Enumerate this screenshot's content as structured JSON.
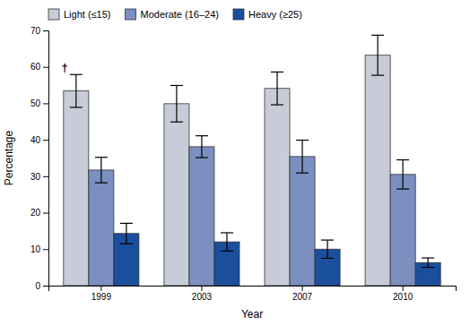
{
  "chart_data": {
    "type": "bar",
    "xlabel": "Year",
    "ylabel": "Percentage",
    "categories": [
      "1999",
      "2003",
      "2007",
      "2010"
    ],
    "series": [
      {
        "name": "Light (≤15)",
        "color": "#c8ccd8",
        "values": [
          53.4,
          49.9,
          54.1,
          63.2
        ],
        "errors": [
          4.5,
          5.0,
          4.5,
          5.5
        ]
      },
      {
        "name": "Moderate (16–24)",
        "color": "#7b8fc0",
        "values": [
          31.7,
          38.1,
          35.4,
          30.5
        ],
        "errors": [
          3.5,
          3.0,
          4.5,
          4.0
        ]
      },
      {
        "name": "Heavy (≥25)",
        "color": "#1a4f9c",
        "values": [
          14.3,
          12.0,
          10.0,
          6.3
        ],
        "errors": [
          2.8,
          2.5,
          2.5,
          1.3
        ]
      }
    ],
    "ylim": [
      0,
      70
    ],
    "yticks": [
      0,
      10,
      20,
      30,
      40,
      50,
      60,
      70
    ],
    "grid": false,
    "legend": "upper left",
    "annotations": [
      {
        "text": "†"
      }
    ]
  }
}
